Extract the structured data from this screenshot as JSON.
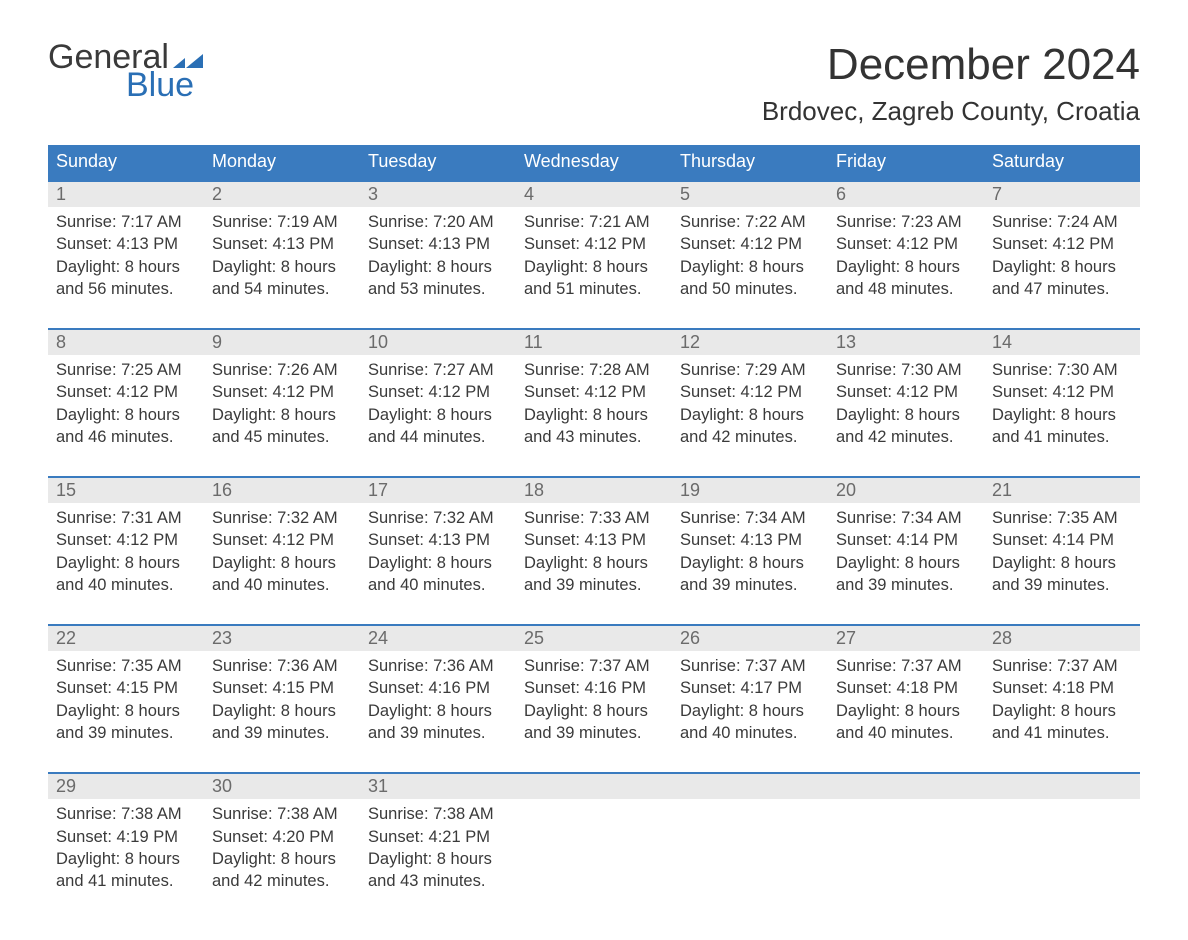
{
  "logo": {
    "word1": "General",
    "word2": "Blue",
    "flag_color": "#2a6fb5"
  },
  "header": {
    "title": "December 2024",
    "location": "Brdovec, Zagreb County, Croatia"
  },
  "style": {
    "header_bg": "#3a7bbf",
    "header_fg": "#ffffff",
    "band_bg": "#e9e9e9",
    "band_fg": "#6b6b6b",
    "text_color": "#3a3a3a",
    "rule_color": "#3a7bbf",
    "page_bg": "#ffffff",
    "title_fontsize": 44,
    "location_fontsize": 26,
    "weekday_fontsize": 18,
    "body_fontsize": 16.5
  },
  "weekdays": [
    "Sunday",
    "Monday",
    "Tuesday",
    "Wednesday",
    "Thursday",
    "Friday",
    "Saturday"
  ],
  "weeks": [
    [
      {
        "n": "1",
        "sr": "Sunrise: 7:17 AM",
        "ss": "Sunset: 4:13 PM",
        "d1": "Daylight: 8 hours",
        "d2": "and 56 minutes."
      },
      {
        "n": "2",
        "sr": "Sunrise: 7:19 AM",
        "ss": "Sunset: 4:13 PM",
        "d1": "Daylight: 8 hours",
        "d2": "and 54 minutes."
      },
      {
        "n": "3",
        "sr": "Sunrise: 7:20 AM",
        "ss": "Sunset: 4:13 PM",
        "d1": "Daylight: 8 hours",
        "d2": "and 53 minutes."
      },
      {
        "n": "4",
        "sr": "Sunrise: 7:21 AM",
        "ss": "Sunset: 4:12 PM",
        "d1": "Daylight: 8 hours",
        "d2": "and 51 minutes."
      },
      {
        "n": "5",
        "sr": "Sunrise: 7:22 AM",
        "ss": "Sunset: 4:12 PM",
        "d1": "Daylight: 8 hours",
        "d2": "and 50 minutes."
      },
      {
        "n": "6",
        "sr": "Sunrise: 7:23 AM",
        "ss": "Sunset: 4:12 PM",
        "d1": "Daylight: 8 hours",
        "d2": "and 48 minutes."
      },
      {
        "n": "7",
        "sr": "Sunrise: 7:24 AM",
        "ss": "Sunset: 4:12 PM",
        "d1": "Daylight: 8 hours",
        "d2": "and 47 minutes."
      }
    ],
    [
      {
        "n": "8",
        "sr": "Sunrise: 7:25 AM",
        "ss": "Sunset: 4:12 PM",
        "d1": "Daylight: 8 hours",
        "d2": "and 46 minutes."
      },
      {
        "n": "9",
        "sr": "Sunrise: 7:26 AM",
        "ss": "Sunset: 4:12 PM",
        "d1": "Daylight: 8 hours",
        "d2": "and 45 minutes."
      },
      {
        "n": "10",
        "sr": "Sunrise: 7:27 AM",
        "ss": "Sunset: 4:12 PM",
        "d1": "Daylight: 8 hours",
        "d2": "and 44 minutes."
      },
      {
        "n": "11",
        "sr": "Sunrise: 7:28 AM",
        "ss": "Sunset: 4:12 PM",
        "d1": "Daylight: 8 hours",
        "d2": "and 43 minutes."
      },
      {
        "n": "12",
        "sr": "Sunrise: 7:29 AM",
        "ss": "Sunset: 4:12 PM",
        "d1": "Daylight: 8 hours",
        "d2": "and 42 minutes."
      },
      {
        "n": "13",
        "sr": "Sunrise: 7:30 AM",
        "ss": "Sunset: 4:12 PM",
        "d1": "Daylight: 8 hours",
        "d2": "and 42 minutes."
      },
      {
        "n": "14",
        "sr": "Sunrise: 7:30 AM",
        "ss": "Sunset: 4:12 PM",
        "d1": "Daylight: 8 hours",
        "d2": "and 41 minutes."
      }
    ],
    [
      {
        "n": "15",
        "sr": "Sunrise: 7:31 AM",
        "ss": "Sunset: 4:12 PM",
        "d1": "Daylight: 8 hours",
        "d2": "and 40 minutes."
      },
      {
        "n": "16",
        "sr": "Sunrise: 7:32 AM",
        "ss": "Sunset: 4:12 PM",
        "d1": "Daylight: 8 hours",
        "d2": "and 40 minutes."
      },
      {
        "n": "17",
        "sr": "Sunrise: 7:32 AM",
        "ss": "Sunset: 4:13 PM",
        "d1": "Daylight: 8 hours",
        "d2": "and 40 minutes."
      },
      {
        "n": "18",
        "sr": "Sunrise: 7:33 AM",
        "ss": "Sunset: 4:13 PM",
        "d1": "Daylight: 8 hours",
        "d2": "and 39 minutes."
      },
      {
        "n": "19",
        "sr": "Sunrise: 7:34 AM",
        "ss": "Sunset: 4:13 PM",
        "d1": "Daylight: 8 hours",
        "d2": "and 39 minutes."
      },
      {
        "n": "20",
        "sr": "Sunrise: 7:34 AM",
        "ss": "Sunset: 4:14 PM",
        "d1": "Daylight: 8 hours",
        "d2": "and 39 minutes."
      },
      {
        "n": "21",
        "sr": "Sunrise: 7:35 AM",
        "ss": "Sunset: 4:14 PM",
        "d1": "Daylight: 8 hours",
        "d2": "and 39 minutes."
      }
    ],
    [
      {
        "n": "22",
        "sr": "Sunrise: 7:35 AM",
        "ss": "Sunset: 4:15 PM",
        "d1": "Daylight: 8 hours",
        "d2": "and 39 minutes."
      },
      {
        "n": "23",
        "sr": "Sunrise: 7:36 AM",
        "ss": "Sunset: 4:15 PM",
        "d1": "Daylight: 8 hours",
        "d2": "and 39 minutes."
      },
      {
        "n": "24",
        "sr": "Sunrise: 7:36 AM",
        "ss": "Sunset: 4:16 PM",
        "d1": "Daylight: 8 hours",
        "d2": "and 39 minutes."
      },
      {
        "n": "25",
        "sr": "Sunrise: 7:37 AM",
        "ss": "Sunset: 4:16 PM",
        "d1": "Daylight: 8 hours",
        "d2": "and 39 minutes."
      },
      {
        "n": "26",
        "sr": "Sunrise: 7:37 AM",
        "ss": "Sunset: 4:17 PM",
        "d1": "Daylight: 8 hours",
        "d2": "and 40 minutes."
      },
      {
        "n": "27",
        "sr": "Sunrise: 7:37 AM",
        "ss": "Sunset: 4:18 PM",
        "d1": "Daylight: 8 hours",
        "d2": "and 40 minutes."
      },
      {
        "n": "28",
        "sr": "Sunrise: 7:37 AM",
        "ss": "Sunset: 4:18 PM",
        "d1": "Daylight: 8 hours",
        "d2": "and 41 minutes."
      }
    ],
    [
      {
        "n": "29",
        "sr": "Sunrise: 7:38 AM",
        "ss": "Sunset: 4:19 PM",
        "d1": "Daylight: 8 hours",
        "d2": "and 41 minutes."
      },
      {
        "n": "30",
        "sr": "Sunrise: 7:38 AM",
        "ss": "Sunset: 4:20 PM",
        "d1": "Daylight: 8 hours",
        "d2": "and 42 minutes."
      },
      {
        "n": "31",
        "sr": "Sunrise: 7:38 AM",
        "ss": "Sunset: 4:21 PM",
        "d1": "Daylight: 8 hours",
        "d2": "and 43 minutes."
      },
      null,
      null,
      null,
      null
    ]
  ]
}
